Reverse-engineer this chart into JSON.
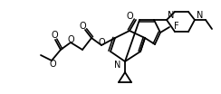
{
  "bg": "#ffffff",
  "lc": "#000000",
  "lw": 1.3,
  "fs": 6.0,
  "fw": 2.44,
  "fh": 1.04,
  "dpi": 100,
  "xlim": [
    0,
    244
  ],
  "ylim": [
    0,
    104
  ]
}
